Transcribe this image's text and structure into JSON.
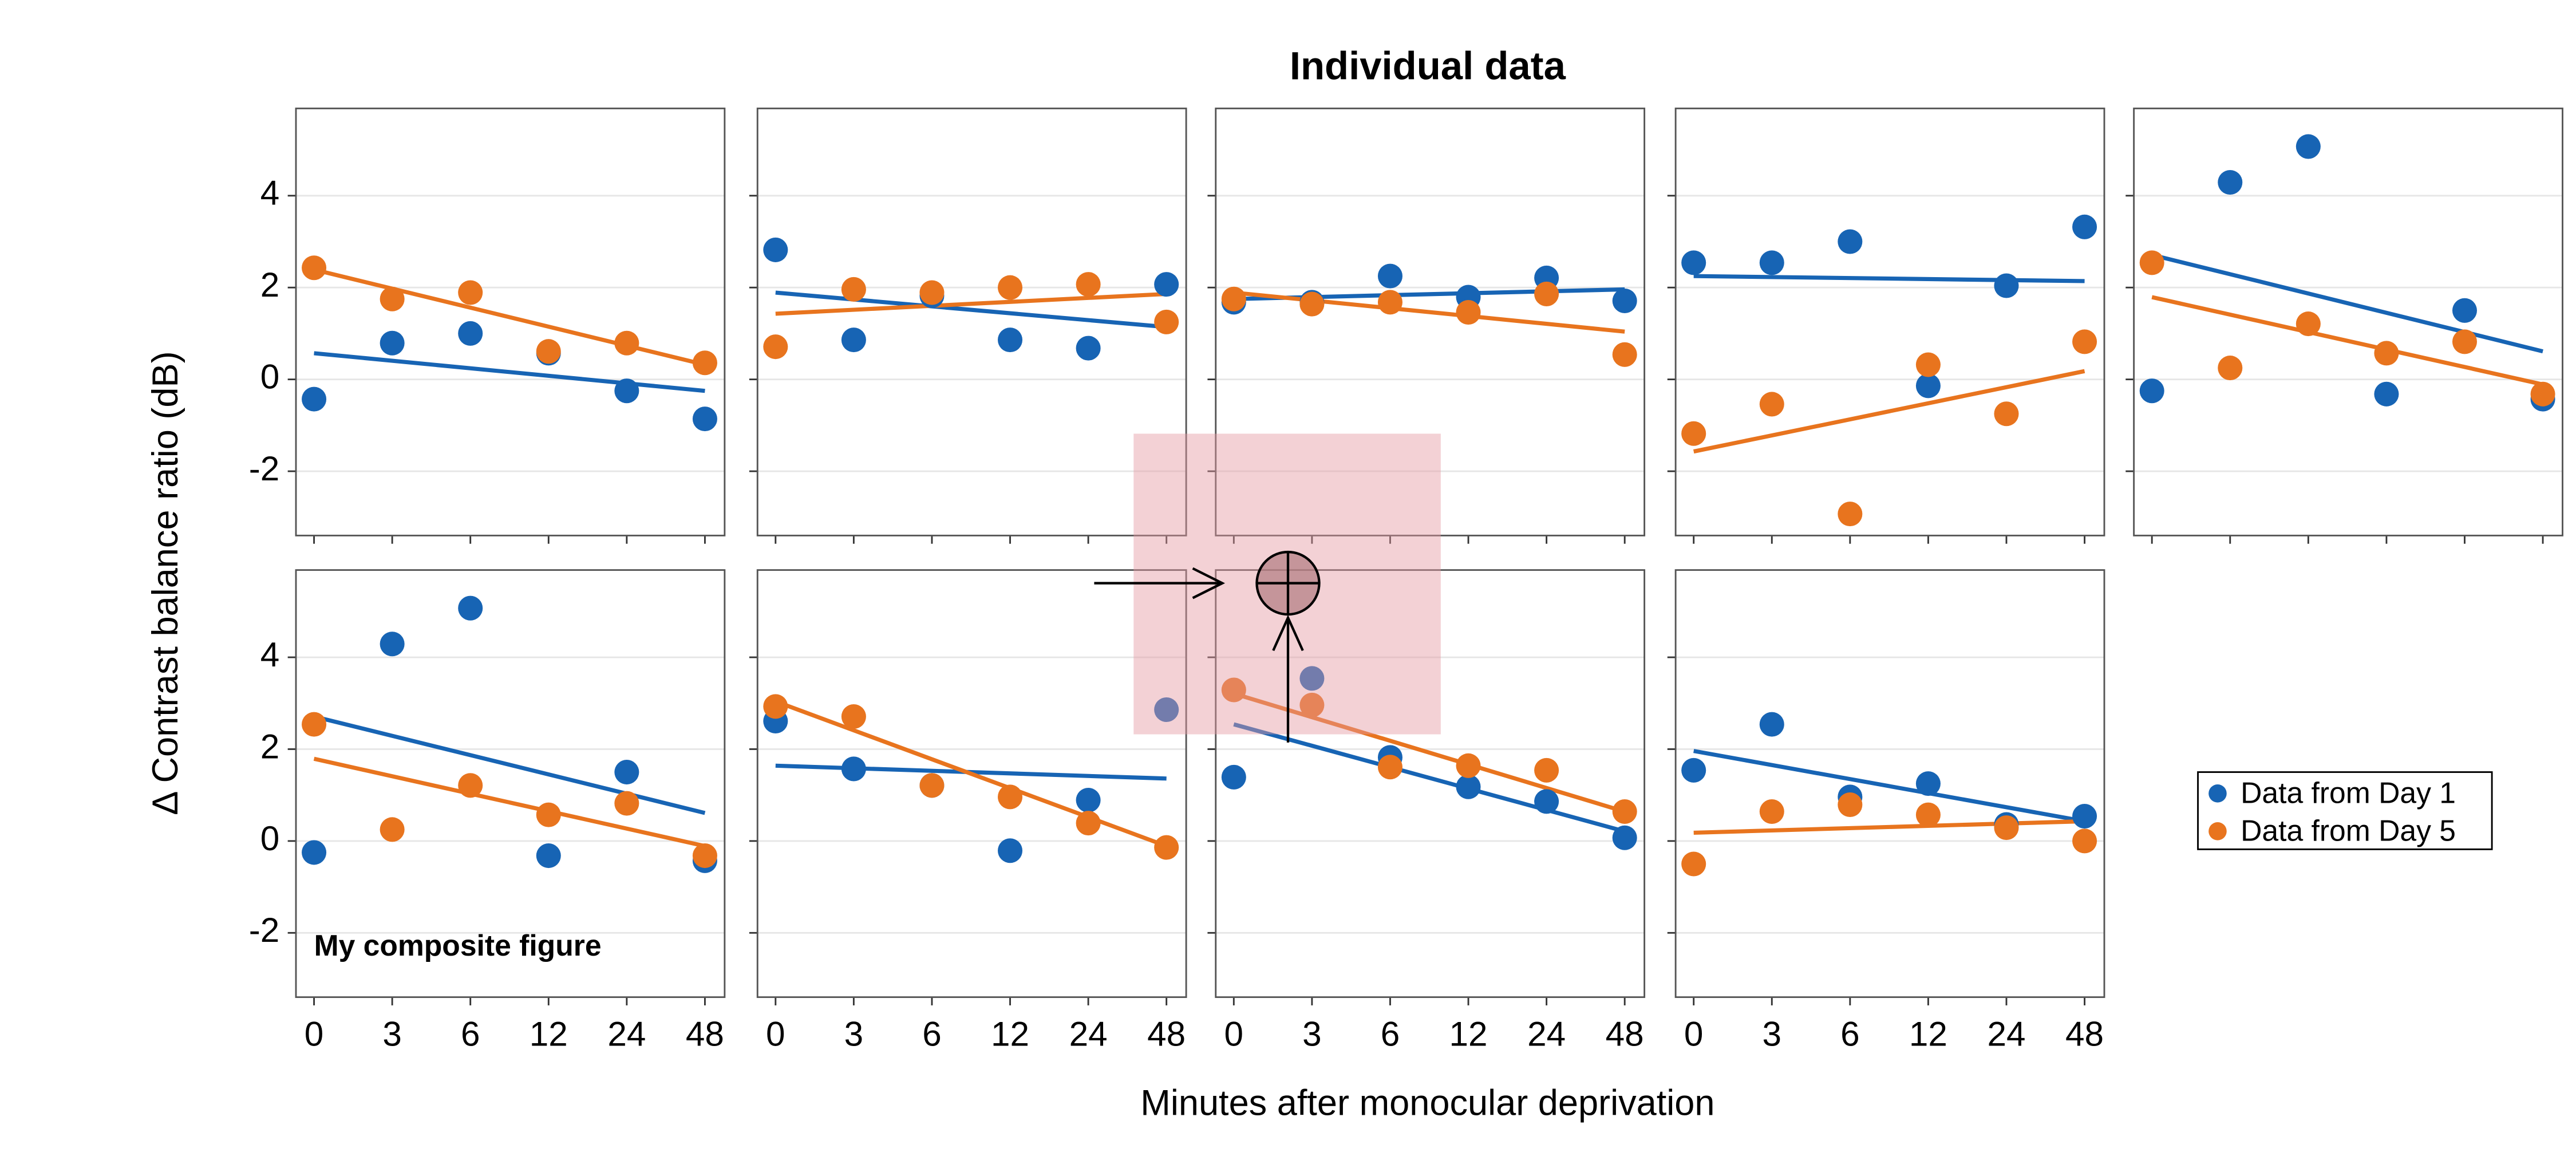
{
  "figure": {
    "title": "Individual data",
    "xlabel": "Minutes after monocular deprivation",
    "ylabel": "Δ Contrast balance ratio (dB)",
    "annotation": "My composite figure"
  },
  "chart_data": [
    {
      "type": "scatter",
      "categories": [
        "0",
        "3",
        "6",
        "12",
        "24",
        "48"
      ],
      "ylim": [
        -3.4,
        5.9
      ],
      "yticks": [
        -2,
        0,
        2,
        4
      ],
      "grid": true,
      "series": [
        {
          "name": "Data from Day 1",
          "color": "#1764b4",
          "values": [
            -0.43,
            0.79,
            1.0,
            0.57,
            -0.25,
            -0.86
          ],
          "trend": [
            0.57,
            -0.25
          ]
        },
        {
          "name": "Data from Day 5",
          "color": "#e8741e",
          "values": [
            2.43,
            1.75,
            1.89,
            0.61,
            0.79,
            0.36
          ],
          "trend": [
            2.39,
            0.32
          ]
        }
      ]
    },
    {
      "type": "scatter",
      "categories": [
        "0",
        "3",
        "6",
        "12",
        "24",
        "48"
      ],
      "ylim": [
        -3.4,
        5.9
      ],
      "yticks": [
        -2,
        0,
        2,
        4
      ],
      "grid": true,
      "series": [
        {
          "name": "Data from Day 1",
          "color": "#1764b4",
          "values": [
            2.82,
            0.86,
            1.82,
            0.86,
            0.68,
            2.07
          ],
          "trend": [
            1.89,
            1.14
          ]
        },
        {
          "name": "Data from Day 5",
          "color": "#e8741e",
          "values": [
            0.71,
            1.96,
            1.89,
            2.0,
            2.07,
            1.25
          ],
          "trend": [
            1.43,
            1.86
          ]
        }
      ]
    },
    {
      "type": "scatter",
      "categories": [
        "0",
        "3",
        "6",
        "12",
        "24",
        "48"
      ],
      "ylim": [
        -3.4,
        5.9
      ],
      "yticks": [
        -2,
        0,
        2,
        4
      ],
      "grid": true,
      "series": [
        {
          "name": "Data from Day 1",
          "color": "#1764b4",
          "values": [
            1.68,
            1.68,
            2.25,
            1.79,
            2.21,
            1.71
          ],
          "trend": [
            1.75,
            1.96
          ]
        },
        {
          "name": "Data from Day 5",
          "color": "#e8741e",
          "values": [
            1.75,
            1.64,
            1.68,
            1.46,
            1.86,
            0.54
          ],
          "trend": [
            1.89,
            1.04
          ]
        }
      ]
    },
    {
      "type": "scatter",
      "categories": [
        "0",
        "3",
        "6",
        "12",
        "24",
        "48"
      ],
      "ylim": [
        -3.4,
        5.9
      ],
      "yticks": [
        -2,
        0,
        2,
        4
      ],
      "grid": true,
      "series": [
        {
          "name": "Data from Day 1",
          "color": "#1764b4",
          "values": [
            2.54,
            2.54,
            3.0,
            -0.14,
            2.04,
            3.32
          ],
          "trend": [
            2.25,
            2.14
          ]
        },
        {
          "name": "Data from Day 5",
          "color": "#e8741e",
          "values": [
            -1.18,
            -0.54,
            -2.93,
            0.32,
            -0.75,
            0.82
          ],
          "trend": [
            -1.57,
            0.18
          ]
        }
      ]
    },
    {
      "type": "scatter",
      "categories": [
        "0",
        "3",
        "6",
        "12",
        "24",
        "48"
      ],
      "ylim": [
        -3.4,
        5.9
      ],
      "yticks": [
        -2,
        0,
        2,
        4
      ],
      "grid": true,
      "series": [
        {
          "name": "Data from Day 1",
          "color": "#1764b4",
          "values": [
            -0.25,
            4.29,
            5.07,
            -0.32,
            1.5,
            -0.43
          ],
          "trend": [
            2.71,
            0.61
          ]
        },
        {
          "name": "Data from Day 5",
          "color": "#e8741e",
          "values": [
            2.54,
            0.25,
            1.21,
            0.57,
            0.82,
            -0.32
          ],
          "trend": [
            1.79,
            -0.11
          ]
        }
      ]
    },
    {
      "type": "scatter",
      "categories": [
        "0",
        "3",
        "6",
        "12",
        "24",
        "48"
      ],
      "ylim": [
        -3.4,
        5.9
      ],
      "yticks": [
        -2,
        0,
        2,
        4
      ],
      "grid": true,
      "series": [
        {
          "name": "Data from Day 1",
          "color": "#1764b4",
          "values": [
            -0.25,
            4.29,
            5.07,
            -0.32,
            1.5,
            -0.43
          ],
          "trend": [
            2.71,
            0.61
          ]
        },
        {
          "name": "Data from Day 5",
          "color": "#e8741e",
          "values": [
            2.54,
            0.25,
            1.21,
            0.57,
            0.82,
            -0.32
          ],
          "trend": [
            1.79,
            -0.11
          ]
        }
      ]
    },
    {
      "type": "scatter",
      "categories": [
        "0",
        "3",
        "6",
        "12",
        "24",
        "48"
      ],
      "ylim": [
        -3.4,
        5.9
      ],
      "yticks": [
        -2,
        0,
        2,
        4
      ],
      "grid": true,
      "series": [
        {
          "name": "Data from Day 1",
          "color": "#1764b4",
          "values": [
            2.61,
            1.57,
            1.21,
            -0.21,
            0.89,
            2.86
          ],
          "trend": [
            1.64,
            1.36
          ]
        },
        {
          "name": "Data from Day 5",
          "color": "#e8741e",
          "values": [
            2.93,
            2.71,
            1.21,
            0.96,
            0.39,
            -0.14
          ],
          "trend": [
            3.04,
            -0.11
          ]
        }
      ]
    },
    {
      "type": "scatter",
      "categories": [
        "0",
        "3",
        "6",
        "12",
        "24",
        "48"
      ],
      "ylim": [
        -3.4,
        5.9
      ],
      "yticks": [
        -2,
        0,
        2,
        4
      ],
      "grid": true,
      "series": [
        {
          "name": "Data from Day 1",
          "color": "#1764b4",
          "values": [
            1.39,
            3.54,
            1.82,
            1.18,
            0.86,
            0.07
          ],
          "trend": [
            2.54,
            0.21
          ]
        },
        {
          "name": "Data from Day 5",
          "color": "#e8741e",
          "values": [
            3.29,
            2.96,
            1.61,
            1.64,
            1.54,
            0.64
          ],
          "trend": [
            3.21,
            0.64
          ]
        }
      ]
    },
    {
      "type": "scatter",
      "categories": [
        "0",
        "3",
        "6",
        "12",
        "24",
        "48"
      ],
      "ylim": [
        -3.4,
        5.9
      ],
      "yticks": [
        -2,
        0,
        2,
        4
      ],
      "grid": true,
      "series": [
        {
          "name": "Data from Day 1",
          "color": "#1764b4",
          "values": [
            1.54,
            2.54,
            0.96,
            1.25,
            0.36,
            0.54
          ],
          "trend": [
            1.96,
            0.43
          ]
        },
        {
          "name": "Data from Day 5",
          "color": "#e8741e",
          "values": [
            -0.5,
            0.64,
            0.79,
            0.57,
            0.29,
            0.0
          ],
          "trend": [
            0.18,
            0.43
          ]
        }
      ]
    }
  ]
}
